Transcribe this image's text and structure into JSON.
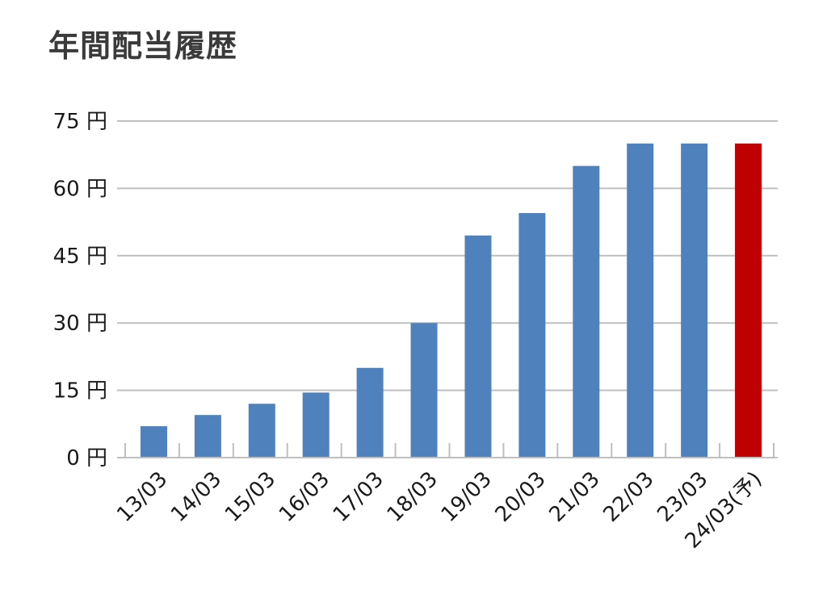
{
  "chart_data": {
    "type": "bar",
    "title": "年間配当履歴",
    "categories": [
      "13/03",
      "14/03",
      "15/03",
      "16/03",
      "17/03",
      "18/03",
      "19/03",
      "20/03",
      "21/03",
      "22/03",
      "23/03",
      "24/03(予)"
    ],
    "values": [
      7,
      9.5,
      12,
      14.5,
      20,
      30,
      49.5,
      54.5,
      65,
      70,
      70,
      70
    ],
    "highlight_index": 11,
    "bar_color": "#4f81bd",
    "highlight_color": "#c00000",
    "ylim": [
      0,
      75
    ],
    "y_ticks": [
      0,
      15,
      30,
      45,
      60,
      75
    ],
    "y_tick_labels": [
      "0 円",
      "15 円",
      "30 円",
      "45 円",
      "60 円",
      "75 円"
    ],
    "grid": true,
    "grid_color": "#bfbfbf",
    "xlabel": "",
    "ylabel": ""
  }
}
